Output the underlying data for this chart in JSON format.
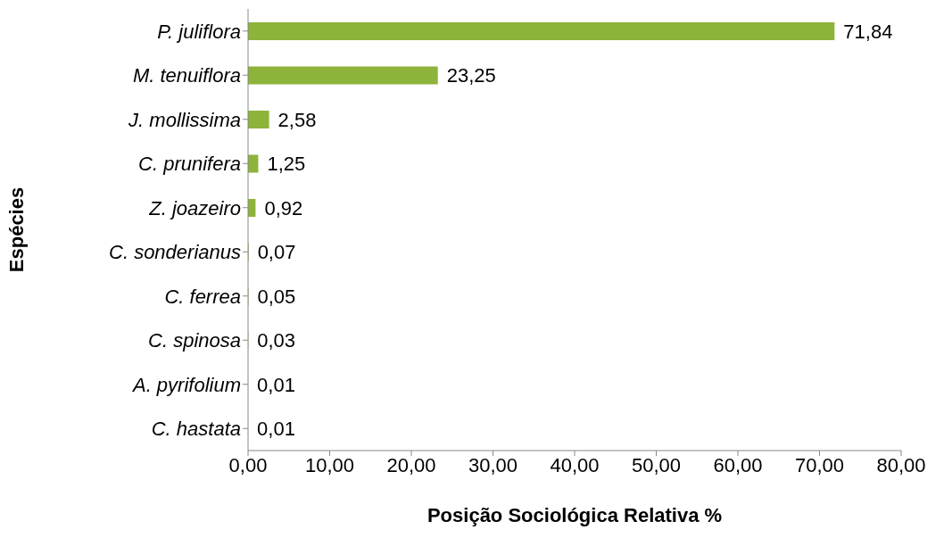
{
  "chart_data": {
    "type": "bar",
    "orientation": "horizontal",
    "xlabel": "Posição Sociológica Relativa %",
    "ylabel": "Espécies",
    "categories": [
      "P. juliflora",
      "M. tenuiflora",
      "J. mollissima",
      "C. prunifera",
      "Z. joazeiro",
      "C. sonderianus",
      "C. ferrea",
      "C. spinosa",
      "A. pyrifolium",
      "C. hastata"
    ],
    "values": [
      71.84,
      23.25,
      2.58,
      1.25,
      0.92,
      0.07,
      0.05,
      0.03,
      0.01,
      0.01
    ],
    "value_labels": [
      "71,84",
      "23,25",
      "2,58",
      "1,25",
      "0,92",
      "0,07",
      "0,05",
      "0,03",
      "0,01",
      "0,01"
    ],
    "color": "#8db33b",
    "xlim": [
      0,
      80
    ],
    "xticks": [
      {
        "value": 0,
        "label": "0,00"
      },
      {
        "value": 10,
        "label": "10,00"
      },
      {
        "value": 20,
        "label": "20,00"
      },
      {
        "value": 30,
        "label": "30,00"
      },
      {
        "value": 40,
        "label": "40,00"
      },
      {
        "value": 50,
        "label": "50,00"
      },
      {
        "value": 60,
        "label": "60,00"
      },
      {
        "value": 70,
        "label": "70,00"
      },
      {
        "value": 80,
        "label": "80,00"
      }
    ],
    "grid": false,
    "legend": false
  }
}
